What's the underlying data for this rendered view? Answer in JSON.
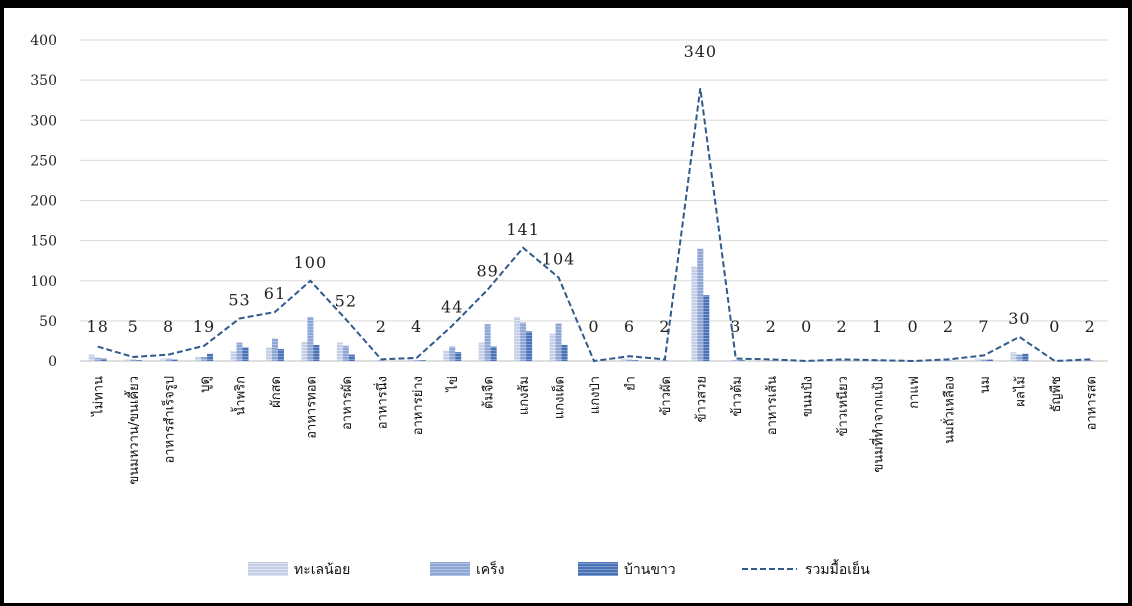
{
  "chart_data": {
    "type": "bar",
    "title": "",
    "xlabel": "",
    "ylabel": "",
    "ylim": [
      0,
      400
    ],
    "yticks": [
      0,
      50,
      100,
      150,
      200,
      250,
      300,
      350,
      400
    ],
    "grid": true,
    "legend_position": "bottom",
    "categories": [
      "ไม่ทาน",
      "ขนมหวาน/ขนเคี้ยว",
      "อาหารสำเร็จรูป",
      "บูดู",
      "น้ำพริก",
      "ผักสด",
      "อาหารทอด",
      "อาหารผัด",
      "อาหารนึ่ง",
      "อาหารย่าง",
      "ไข่",
      "ต้มจืด",
      "แกงส้ม",
      "แกงเผ็ด",
      "แกงป่า",
      "ยำ",
      "ข้าวผัด",
      "ข้าวสวย",
      "ข้าวต้ม",
      "อาหารเส้น",
      "ขนมปัง",
      "ข้าวเหนียว",
      "ขนมที่ทำจากแป้ง",
      "กาแฟ",
      "นมถั่วเหลือง",
      "นม",
      "ผลไม้",
      "ธัญพืช",
      "อาหารสด"
    ],
    "series": [
      {
        "name": "ทะเลน้อย",
        "type": "bar",
        "color": "#c5d0e6",
        "values": [
          8,
          2,
          3,
          5,
          12,
          17,
          24,
          23,
          1,
          2,
          13,
          23,
          55,
          34,
          0,
          3,
          1,
          118,
          1,
          1,
          0,
          1,
          0,
          0,
          1,
          3,
          11,
          0,
          1
        ]
      },
      {
        "name": "เคร็ง",
        "type": "bar",
        "color": "#8fa6d4",
        "values": [
          4,
          2,
          3,
          5,
          23,
          28,
          55,
          19,
          1,
          1,
          18,
          46,
          48,
          47,
          0,
          2,
          1,
          140,
          1,
          1,
          0,
          1,
          1,
          0,
          1,
          2,
          8,
          0,
          1
        ]
      },
      {
        "name": "บ้านขาว",
        "type": "bar",
        "color": "#4a72b5",
        "values": [
          3,
          1,
          2,
          9,
          17,
          15,
          20,
          8,
          0,
          1,
          11,
          18,
          37,
          20,
          0,
          1,
          0,
          82,
          1,
          0,
          0,
          0,
          0,
          0,
          0,
          2,
          9,
          0,
          0
        ]
      },
      {
        "name": "รวมมื้อเย็น",
        "type": "line",
        "style": "dashed",
        "color": "#2f5a8c",
        "values": [
          18,
          5,
          8,
          19,
          53,
          61,
          100,
          52,
          2,
          4,
          44,
          89,
          141,
          104,
          0,
          6,
          2,
          340,
          3,
          2,
          0,
          2,
          1,
          0,
          2,
          7,
          30,
          0,
          2
        ]
      }
    ],
    "data_labels": [
      18,
      5,
      8,
      19,
      53,
      61,
      100,
      52,
      2,
      4,
      44,
      89,
      141,
      104,
      0,
      6,
      2,
      340,
      3,
      2,
      0,
      2,
      1,
      0,
      2,
      7,
      30,
      0,
      2
    ]
  }
}
